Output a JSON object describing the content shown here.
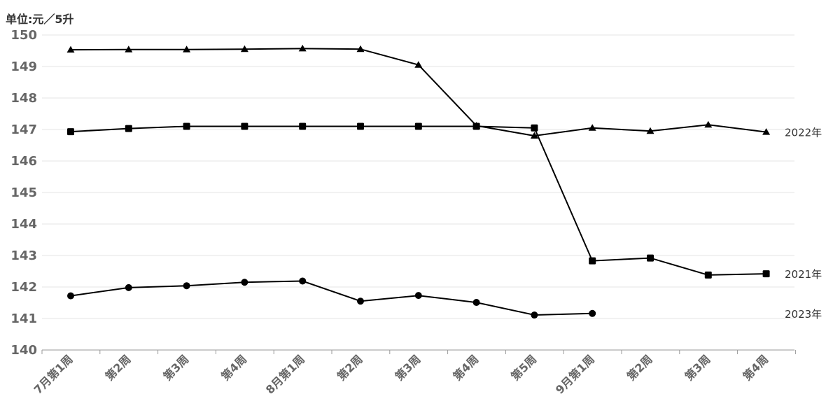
{
  "chart_data": {
    "type": "line",
    "unit_label": "单位:元／5升",
    "categories": [
      "7月第1周",
      "第2周",
      "第3周",
      "第4周",
      "8月第1周",
      "第2周",
      "第3周",
      "第4周",
      "第5周",
      "9月第1周",
      "第2周",
      "第3周",
      "第4周"
    ],
    "ylim": [
      140,
      150
    ],
    "yticks": [
      140,
      141,
      142,
      143,
      144,
      145,
      146,
      147,
      148,
      149,
      150
    ],
    "grid": true,
    "series": [
      {
        "name": "2022年",
        "marker": "triangle",
        "values": [
          149.53,
          149.54,
          149.54,
          149.55,
          149.57,
          149.55,
          149.05,
          147.12,
          146.8,
          147.05,
          146.95,
          147.15,
          146.92
        ]
      },
      {
        "name": "2021年",
        "marker": "square",
        "values": [
          146.93,
          147.03,
          147.1,
          147.1,
          147.1,
          147.1,
          147.1,
          147.1,
          147.05,
          142.83,
          142.92,
          142.38,
          142.42
        ]
      },
      {
        "name": "2023年",
        "marker": "circle",
        "values": [
          141.72,
          141.98,
          142.04,
          142.15,
          142.19,
          141.55,
          141.73,
          141.51,
          141.11,
          141.16,
          null,
          null,
          null
        ]
      }
    ],
    "line_color": "#000000"
  }
}
